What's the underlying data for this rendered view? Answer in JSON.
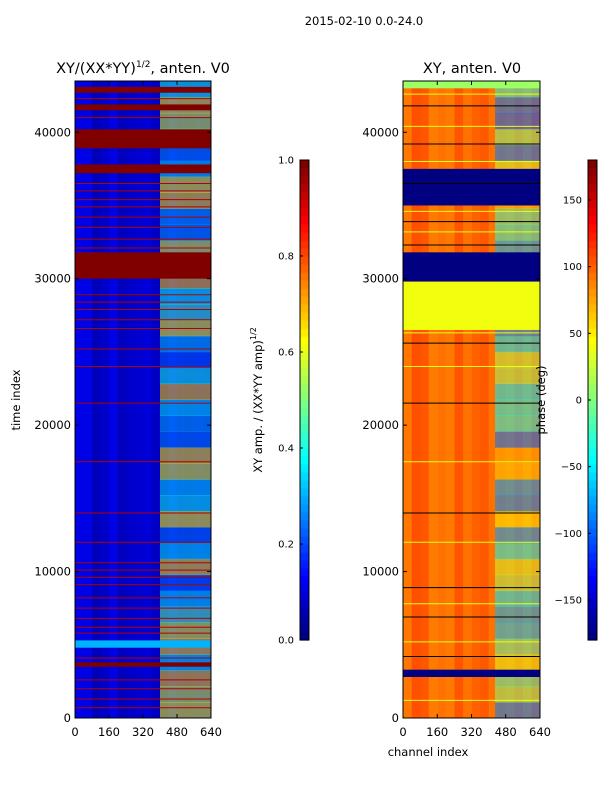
{
  "figure_title": "2015-02-10 0.0-24.0",
  "chart_data": [
    {
      "type": "heatmap",
      "title": "XY/(XX*YY)",
      "title_exponent": "1/2",
      "title_suffix": ", anten. V0",
      "xlabel": "",
      "ylabel": "time index",
      "xlim": [
        0,
        640
      ],
      "ylim": [
        0,
        43500
      ],
      "xticks": [
        0,
        160,
        320,
        480,
        640
      ],
      "yticks": [
        0,
        10000,
        20000,
        30000,
        40000
      ],
      "colorscale": "jet",
      "colorbar": {
        "label": "XY amp. / (XX*YY amp)",
        "label_exponent": "1/2",
        "range": [
          0.0,
          1.0
        ],
        "ticks": [
          "0.0",
          "0.2",
          "0.4",
          "0.6",
          "0.8",
          "1.0"
        ],
        "tick_values": [
          0.0,
          0.2,
          0.4,
          0.6,
          0.8,
          1.0
        ]
      },
      "base_value": 0.08,
      "bands": [
        {
          "t0": 30000,
          "t1": 31800,
          "value": 1.0
        },
        {
          "t0": 38900,
          "t1": 40200,
          "value": 1.0
        },
        {
          "t0": 37200,
          "t1": 37800,
          "value": 1.0
        },
        {
          "t0": 41500,
          "t1": 41900,
          "value": 1.0
        },
        {
          "t0": 42700,
          "t1": 43100,
          "value": 1.0
        },
        {
          "t0": 3500,
          "t1": 3800,
          "value": 1.0
        },
        {
          "t0": 4800,
          "t1": 5300,
          "value": 0.3
        }
      ],
      "lines": [
        700,
        1300,
        2000,
        2600,
        4100,
        5800,
        6200,
        6800,
        7500,
        8200,
        9100,
        9600,
        10100,
        10600,
        12000,
        14000,
        17500,
        21500,
        24000,
        25200,
        26600,
        27200,
        27900,
        28400,
        28900,
        32100,
        32700,
        33500,
        34200,
        34900,
        35400,
        36000,
        36500,
        41000,
        42300
      ],
      "hot_region": {
        "c0": 400,
        "c1": 640,
        "value": 0.45
      }
    },
    {
      "type": "heatmap",
      "title": "XY, anten. V0",
      "xlabel": "channel index",
      "ylabel": "",
      "xlim": [
        0,
        640
      ],
      "ylim": [
        0,
        43500
      ],
      "xticks": [
        0,
        160,
        320,
        480,
        640
      ],
      "yticks": [
        0,
        10000,
        20000,
        30000,
        40000
      ],
      "colorscale": "jet",
      "colorbar": {
        "label": "phase (deg)",
        "range": [
          -180,
          180
        ],
        "ticks": [
          "150",
          "100",
          "50",
          "0",
          "−50",
          "−100",
          "−150"
        ],
        "tick_values": [
          150,
          100,
          50,
          0,
          -50,
          -100,
          -150
        ]
      },
      "base_value": 100,
      "bands": [
        {
          "t0": 29800,
          "t1": 31800,
          "value": -180
        },
        {
          "t0": 35000,
          "t1": 37500,
          "value": -180
        },
        {
          "t0": 2800,
          "t1": 3300,
          "value": -180
        },
        {
          "t0": 26500,
          "t1": 29800,
          "value": 40
        },
        {
          "t0": 43000,
          "t1": 43500,
          "value": 10
        }
      ],
      "lines": [
        1200,
        4200,
        5200,
        6900,
        7800,
        8900,
        12000,
        14000,
        17500,
        21500,
        24000,
        25600,
        26300,
        32300,
        33200,
        33900,
        34600,
        36500,
        38000,
        39200,
        40400,
        41800,
        42600
      ],
      "hot_region": {
        "c0": 430,
        "c1": 640,
        "value": -20
      }
    }
  ]
}
